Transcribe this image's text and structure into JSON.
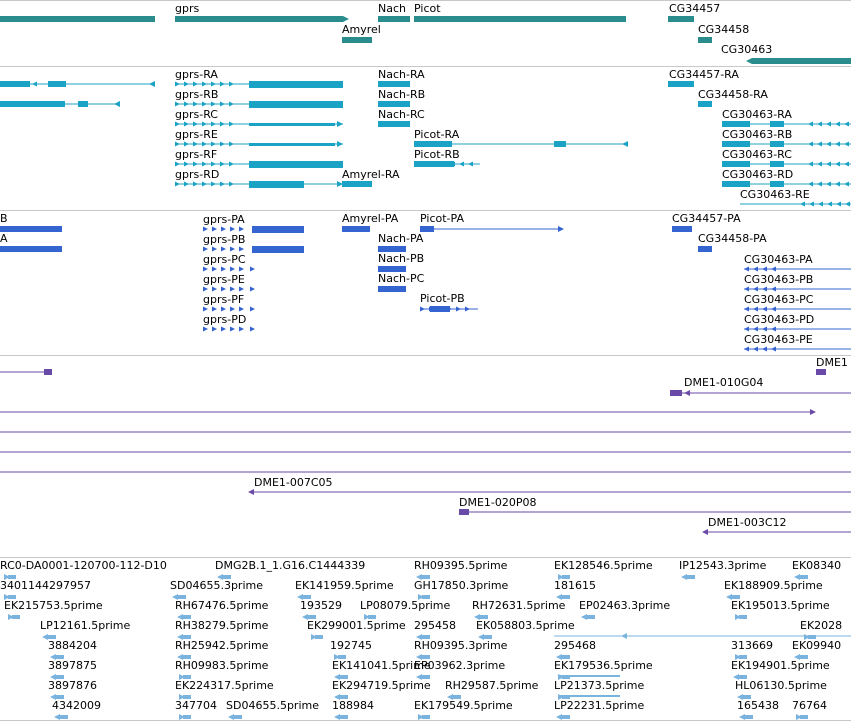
{
  "colors": {
    "gene": "#2a8c8c",
    "transcript": "#1ba3c6",
    "cds": "#3464d0",
    "cdna": "#6a4aa8",
    "est": "#7bb3df",
    "divider": "#c8c8c8",
    "label": "#000000"
  },
  "gene_track": {
    "labels": [
      "gprs",
      "Nach",
      "Picot",
      "CG34457",
      "Amyrel",
      "CG34458",
      "CG30463"
    ]
  },
  "transcript_track": {
    "labels": [
      "gprs-RA",
      "gprs-RB",
      "gprs-RC",
      "gprs-RE",
      "gprs-RF",
      "gprs-RD",
      "Nach-RA",
      "Nach-RB",
      "Nach-RC",
      "Picot-RA",
      "Picot-RB",
      "Amyrel-RA",
      "CG34457-RA",
      "CG34458-RA",
      "CG30463-RA",
      "CG30463-RB",
      "CG30463-RC",
      "CG30463-RD",
      "CG30463-RE"
    ]
  },
  "cds_track": {
    "labels": [
      "B",
      "A",
      "gprs-PA",
      "gprs-PB",
      "gprs-PC",
      "gprs-PE",
      "gprs-PF",
      "gprs-PD",
      "Amyrel-PA",
      "Picot-PA",
      "Nach-PA",
      "Nach-PB",
      "Nach-PC",
      "Picot-PB",
      "CG34457-PA",
      "CG34458-PA",
      "CG30463-PA",
      "CG30463-PB",
      "CG30463-PC",
      "CG30463-PD",
      "CG30463-PE"
    ]
  },
  "cdna_track": {
    "labels": [
      "DME1",
      "DME1-010G04",
      "DME1-007C05",
      "DME1-020P08",
      "DME1-003C12"
    ]
  },
  "est_track": {
    "labels": [
      "RC0-DA0001-120700-112-D10",
      "DMG2B.1_1.G16.C1444339",
      "RH09395.5prime",
      "EK128546.5prime",
      "IP12543.3prime",
      "EK08340",
      "3401144297957",
      "SD04655.3prime",
      "EK141959.5prime",
      "GH17850.3prime",
      "181615",
      "EK188909.5prime",
      "EK215753.5prime",
      "RH67476.5prime",
      "193529",
      "LP08079.5prime",
      "RH72631.5prime",
      "EP02463.3prime",
      "EK195013.5prime",
      "LP12161.5prime",
      "RH38279.5prime",
      "EK299001.5prime",
      "295458",
      "EK058803.5prime",
      "EK2028",
      "3884204",
      "RH25942.5prime",
      "192745",
      "RH09395.3prime",
      "295468",
      "313669",
      "EK09940",
      "3897875",
      "RH09983.5prime",
      "EK141041.5prime",
      "EP03962.3prime",
      "EK179536.5prime",
      "EK194901.5prime",
      "3897876",
      "EK224317.5prime",
      "EK294719.5prime",
      "RH29587.5prime",
      "LP21373.5prime",
      "HL06130.5prime",
      "4342009",
      "347704",
      "SD04655.5prime",
      "188984",
      "EK179549.5prime",
      "LP22231.5prime",
      "165438",
      "76764"
    ]
  }
}
